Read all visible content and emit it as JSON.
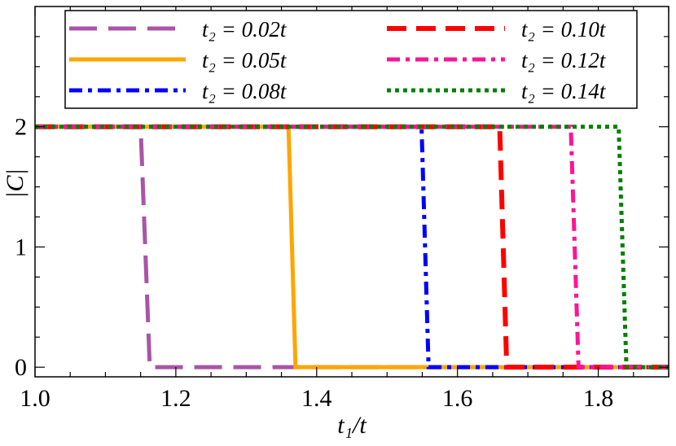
{
  "chart_data": {
    "type": "line",
    "xlabel": "t₁/t",
    "ylabel": "|C|",
    "xlim": [
      1.0,
      1.9
    ],
    "ylim": [
      -0.08,
      3.0
    ],
    "xticks": [
      1.0,
      1.2,
      1.4,
      1.6,
      1.8
    ],
    "xtick_labels": [
      "1.0",
      "1.2",
      "1.4",
      "1.6",
      "1.8"
    ],
    "yticks": [
      0,
      1,
      2
    ],
    "ytick_labels": [
      "0",
      "1",
      "2"
    ],
    "grid": false,
    "legend_position": "top",
    "series": [
      {
        "name": "t₂ = 0.02t",
        "color": "#a855a8",
        "style": "long-dash",
        "x": [
          1.0,
          1.15,
          1.163,
          1.9
        ],
        "y": [
          2,
          2,
          0,
          0
        ]
      },
      {
        "name": "t₂ = 0.05t",
        "color": "#ffa500",
        "style": "solid",
        "x": [
          1.0,
          1.36,
          1.37,
          1.9
        ],
        "y": [
          2,
          2,
          0,
          0
        ]
      },
      {
        "name": "t₂ = 0.08t",
        "color": "#0000ff",
        "style": "dash-dot",
        "x": [
          1.0,
          1.549,
          1.559,
          1.9
        ],
        "y": [
          2,
          2,
          0,
          0
        ]
      },
      {
        "name": "t₂ = 0.10t",
        "color": "#ff0000",
        "style": "dashed",
        "x": [
          1.0,
          1.66,
          1.67,
          1.9
        ],
        "y": [
          2,
          2,
          0,
          0
        ]
      },
      {
        "name": "t₂ = 0.12t",
        "color": "#ff1493",
        "style": "dash-dot",
        "x": [
          1.0,
          1.761,
          1.772,
          1.9
        ],
        "y": [
          2,
          2,
          0,
          0
        ]
      },
      {
        "name": "t₂ = 0.14t",
        "color": "#008000",
        "style": "dotted",
        "x": [
          1.0,
          1.829,
          1.84,
          1.9
        ],
        "y": [
          2,
          2,
          0,
          0
        ]
      }
    ]
  }
}
